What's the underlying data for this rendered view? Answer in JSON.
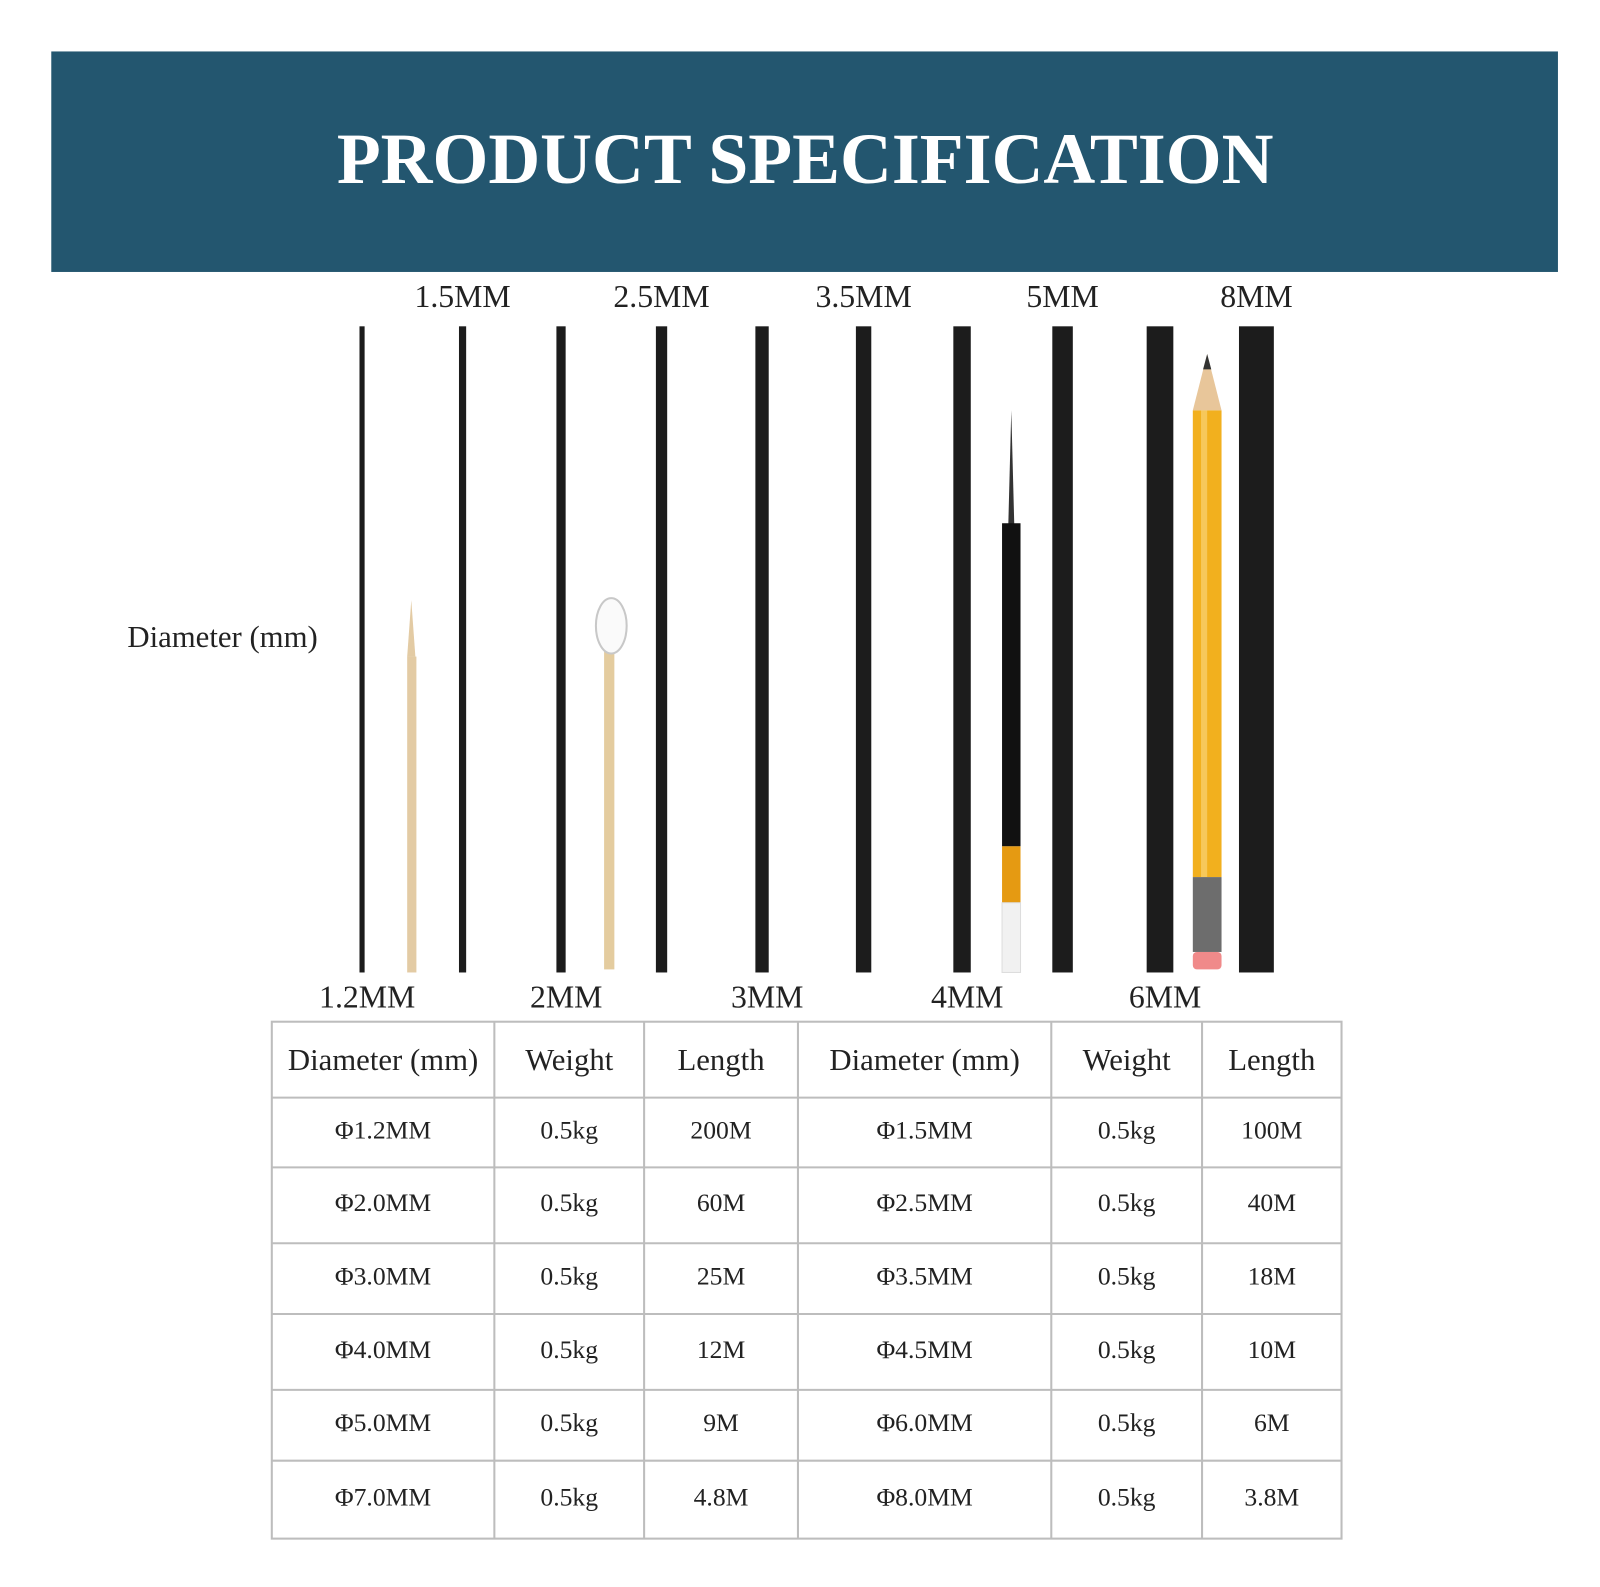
{
  "header": {
    "title": "PRODUCT SPECIFICATION"
  },
  "figure": {
    "axis_label": "Diameter (mm)",
    "top_labels": [
      "1.5MM",
      "2.5MM",
      "3.5MM",
      "5MM",
      "8MM"
    ],
    "bottom_labels": [
      "1.2MM",
      "2MM",
      "3MM",
      "4MM",
      "6MM"
    ]
  },
  "table": {
    "header": [
      "Diameter (mm)",
      "Weight",
      "Length",
      "Diameter (mm)",
      "Weight",
      "Length"
    ],
    "rows": [
      [
        "Φ1.2MM",
        "0.5kg",
        "200M",
        "Φ1.5MM",
        "0.5kg",
        "100M"
      ],
      [
        "Φ2.0MM",
        "0.5kg",
        "60M",
        "Φ2.5MM",
        "0.5kg",
        "40M"
      ],
      [
        "Φ3.0MM",
        "0.5kg",
        "25M",
        "Φ3.5MM",
        "0.5kg",
        "18M"
      ],
      [
        "Φ4.0MM",
        "0.5kg",
        "12M",
        "Φ4.5MM",
        "0.5kg",
        "10M"
      ],
      [
        "Φ5.0MM",
        "0.5kg",
        "9M",
        "Φ6.0MM",
        "0.5kg",
        "6M"
      ],
      [
        "Φ7.0MM",
        "0.5kg",
        "4.8M",
        "Φ8.0MM",
        "0.5kg",
        "3.8M"
      ]
    ]
  }
}
